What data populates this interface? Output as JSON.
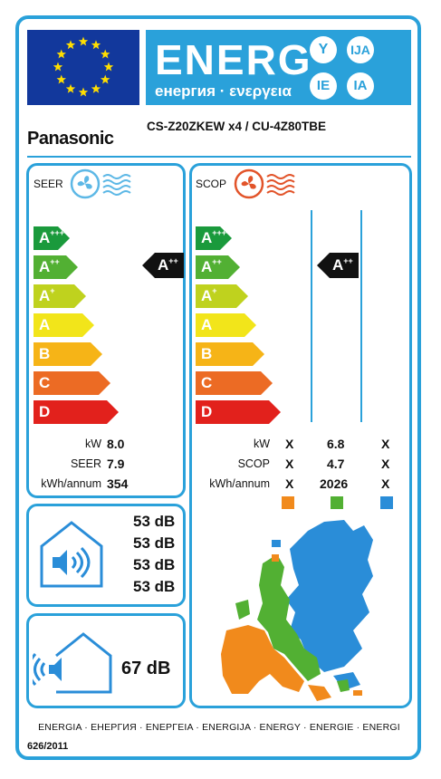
{
  "header": {
    "energ_word": "ENERG",
    "energ_sub": "енергия · ενεργεια",
    "badges": [
      "Y",
      "IJA",
      "IE",
      "IA"
    ]
  },
  "brand": "Panasonic",
  "model": "CS-Z20ZKEW x4 / CU-4Z80TBE",
  "classes": [
    {
      "letter": "A",
      "sup": "+++",
      "color": "#1a9a3c"
    },
    {
      "letter": "A",
      "sup": "++",
      "color": "#52b033"
    },
    {
      "letter": "A",
      "sup": "+",
      "color": "#bfd21e"
    },
    {
      "letter": "A",
      "sup": "",
      "color": "#f2e51a"
    },
    {
      "letter": "B",
      "sup": "",
      "color": "#f6b417"
    },
    {
      "letter": "C",
      "sup": "",
      "color": "#ec6b24"
    },
    {
      "letter": "D",
      "sup": "",
      "color": "#e2211c"
    }
  ],
  "seer": {
    "title": "SEER",
    "rating": {
      "letter": "A",
      "sup": "++"
    },
    "labels": {
      "kw": "kW",
      "seer": "SEER",
      "kwh": "kWh/annum"
    },
    "values": {
      "kw": "8.0",
      "seer": "7.9",
      "kwh": "354"
    }
  },
  "scop": {
    "title": "SCOP",
    "rating": {
      "letter": "A",
      "sup": "++"
    },
    "labels": {
      "kw": "kW",
      "scop": "SCOP",
      "kwh": "kWh/annum"
    },
    "col_warm": {
      "kw": "X",
      "scop": "X",
      "kwh": "X"
    },
    "col_avg": {
      "kw": "6.8",
      "scop": "4.7",
      "kwh": "2026"
    },
    "col_cold": {
      "kw": "X",
      "scop": "X",
      "kwh": "X"
    },
    "zone_colors": {
      "warm": "#f18a1c",
      "average": "#52b033",
      "cold": "#2a8dd8"
    }
  },
  "noise_indoor": [
    "53 dB",
    "53 dB",
    "53 dB",
    "53 dB"
  ],
  "noise_outdoor": "67 dB",
  "footer": "ENERGIA · ЕНЕРГИЯ · ΕΝΕΡΓΕΙΑ · ENERGIJA · ENERGY · ENERGIE · ENERGI",
  "regulation": "626/2011",
  "colors": {
    "frame": "#2aa1da",
    "eu_blue": "#12389c",
    "star": "#ffde00"
  }
}
